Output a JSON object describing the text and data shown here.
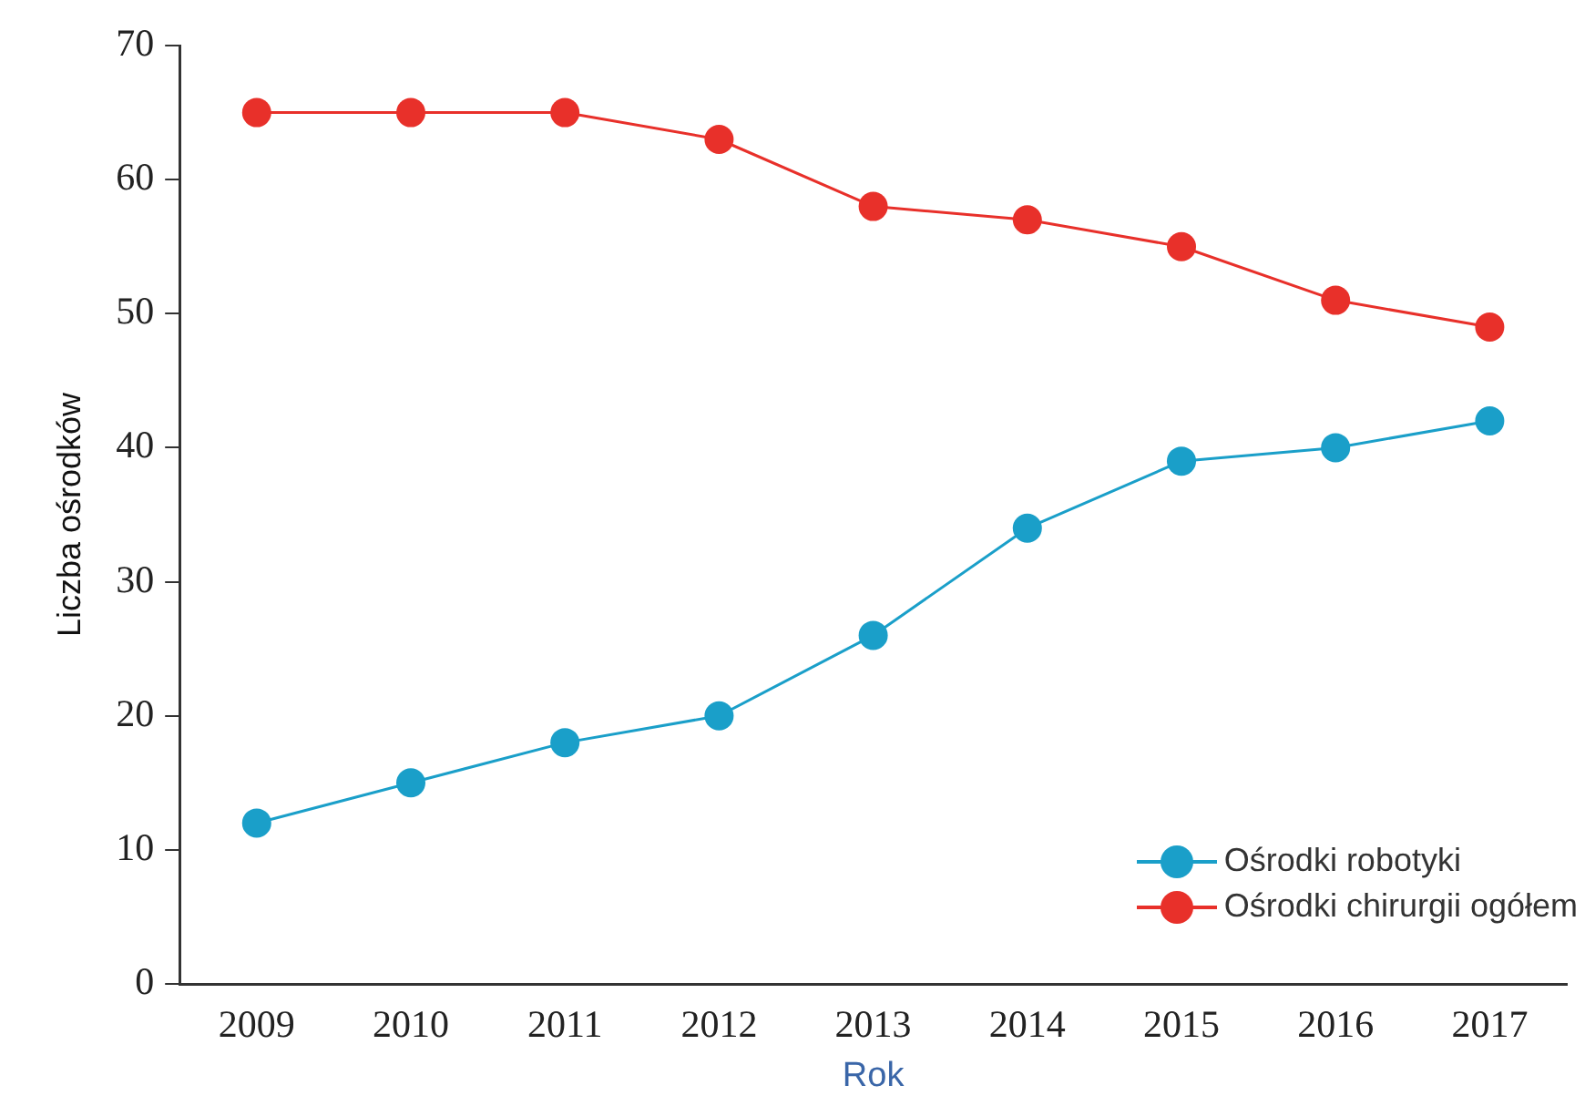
{
  "chart_data": {
    "type": "line",
    "xlabel": "Rok",
    "ylabel": "Liczba ośrodków",
    "categories": [
      "2009",
      "2010",
      "2011",
      "2012",
      "2013",
      "2014",
      "2015",
      "2016",
      "2017"
    ],
    "series": [
      {
        "name": "Ośrodki robotyki",
        "color": "#1a9fc9",
        "values": [
          12,
          15,
          18,
          20,
          26,
          34,
          39,
          40,
          42
        ]
      },
      {
        "name": "Ośrodki chirurgii ogółem",
        "color": "#e8302a",
        "values": [
          65,
          65,
          65,
          63,
          58,
          57,
          55,
          51,
          49
        ]
      }
    ],
    "ylim": [
      0,
      70
    ],
    "yticks": [
      0,
      10,
      20,
      30,
      40,
      50,
      60,
      70
    ],
    "grid": false,
    "legend": "bottom right",
    "marker": "circle",
    "line_style": "solid"
  }
}
